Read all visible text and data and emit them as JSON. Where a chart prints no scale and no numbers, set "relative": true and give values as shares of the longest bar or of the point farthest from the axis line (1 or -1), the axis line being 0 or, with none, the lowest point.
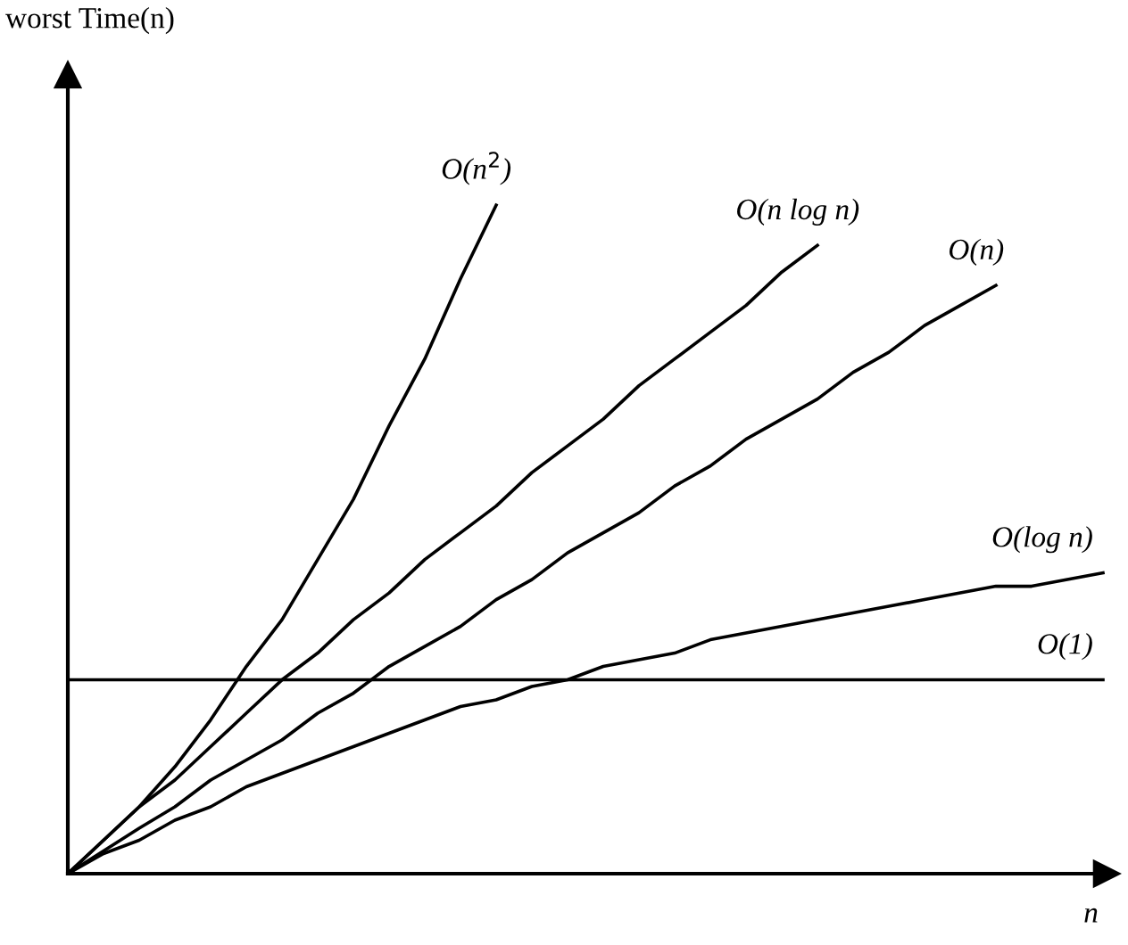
{
  "chart_data": {
    "type": "line",
    "relative": true,
    "xlabel": "n",
    "annotations": [
      "worst Time(n)"
    ],
    "categories": [
      null,
      null,
      null,
      null,
      null,
      null,
      null,
      null,
      null,
      null,
      null,
      null,
      null,
      null,
      null,
      null,
      null,
      null,
      null,
      null,
      null,
      null,
      null,
      null,
      null,
      null,
      null,
      null,
      null,
      null
    ],
    "series": [
      {
        "name": "O(n$^{2}$)",
        "color": "#000000",
        "values": [
          0,
          0.05,
          0.1,
          0.16,
          0.23,
          0.31,
          0.38,
          0.47,
          0.56,
          0.67,
          0.77,
          0.89,
          1,
          null,
          null,
          null,
          null,
          null,
          null,
          null,
          null,
          null,
          null,
          null,
          null,
          null,
          null,
          null,
          null,
          null
        ]
      },
      {
        "name": "O(n log n)",
        "color": "#000000",
        "values": [
          0,
          0.05,
          0.1,
          0.14,
          0.19,
          0.24,
          0.29,
          0.33,
          0.38,
          0.42,
          0.47,
          0.51,
          0.55,
          0.6,
          0.64,
          0.68,
          0.73,
          0.77,
          0.81,
          0.85,
          0.9,
          0.94,
          null,
          null,
          null,
          null,
          null,
          null,
          null,
          null
        ]
      },
      {
        "name": "O(n)",
        "color": "#000000",
        "values": [
          0,
          0.034,
          0.068,
          0.1,
          0.14,
          0.17,
          0.2,
          0.24,
          0.27,
          0.31,
          0.34,
          0.37,
          0.41,
          0.44,
          0.48,
          0.51,
          0.54,
          0.58,
          0.61,
          0.65,
          0.68,
          0.71,
          0.75,
          0.78,
          0.82,
          0.85,
          0.88,
          null,
          null,
          null
        ]
      },
      {
        "name": "O(log n)",
        "color": "#000000",
        "values": [
          0,
          0.03,
          0.05,
          0.08,
          0.1,
          0.13,
          0.15,
          0.17,
          0.19,
          0.21,
          0.23,
          0.25,
          0.26,
          0.28,
          0.29,
          0.31,
          0.32,
          0.33,
          0.35,
          0.36,
          0.37,
          0.38,
          0.39,
          0.4,
          0.41,
          0.42,
          0.43,
          0.43,
          0.44,
          0.45
        ]
      },
      {
        "name": "O(1)",
        "color": "#000000",
        "values": [
          0.29,
          0.29,
          0.29,
          0.29,
          0.29,
          0.29,
          0.29,
          0.29,
          0.29,
          0.29,
          0.29,
          0.29,
          0.29,
          0.29,
          0.29,
          0.29,
          0.29,
          0.29,
          0.29,
          0.29,
          0.29,
          0.29,
          0.29,
          0.29,
          0.29,
          0.29,
          0.29,
          0.29,
          0.29,
          0.29
        ]
      }
    ],
    "legend": false,
    "tick_labels": false,
    "marker": "none",
    "line_style": "solid"
  }
}
